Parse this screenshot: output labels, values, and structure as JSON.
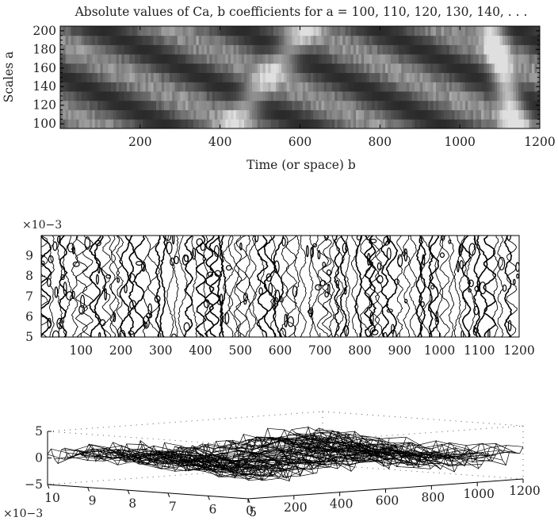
{
  "figure": {
    "panels": [
      {
        "id": "scalogram",
        "title": "Absolute values of Ca, b coefficients for a = 100, 110, 120, 130, 140, . . .",
        "xlabel": "Time (or space) b",
        "ylabel": "Scales a",
        "xticks": [
          "200",
          "400",
          "600",
          "800",
          "1000",
          "1200"
        ],
        "yticks": [
          "100",
          "120",
          "140",
          "160",
          "180",
          "200"
        ]
      },
      {
        "id": "contour",
        "multiplier": "×10−3",
        "xticks": [
          "100",
          "200",
          "300",
          "400",
          "500",
          "600",
          "700",
          "800",
          "900",
          "1000",
          "1100",
          "1200"
        ],
        "yticks": [
          "5",
          "6",
          "7",
          "8",
          "9"
        ]
      },
      {
        "id": "surface",
        "multiplier": "×10−3",
        "zticks": [
          "5",
          "0",
          "−5"
        ],
        "yticks": [
          "10",
          "9",
          "8",
          "7",
          "6",
          "5"
        ],
        "xticks": [
          "0",
          "200",
          "400",
          "600",
          "800",
          "1000",
          "1200"
        ]
      }
    ]
  },
  "chart_data": [
    {
      "type": "heatmap",
      "title": "Absolute values of Ca, b coefficients for a = 100, 110, 120, 130, 140, . . .",
      "xlabel": "Time (or space) b",
      "ylabel": "Scales a",
      "xlim": [
        0,
        1200
      ],
      "ylim": [
        95,
        205
      ],
      "scales": [
        100,
        110,
        120,
        130,
        140,
        150,
        160,
        170,
        180,
        190,
        200
      ],
      "colormap": "grayscale"
    },
    {
      "type": "contour",
      "xlim": [
        0,
        1200
      ],
      "ylim": [
        0.005,
        0.01
      ],
      "y_multiplier": "1e-3",
      "line_color": "#000000"
    },
    {
      "type": "surface",
      "x_range": [
        0,
        1200
      ],
      "y_range": [
        0.005,
        0.01
      ],
      "z_range": [
        -5,
        5
      ],
      "y_multiplier": "1e-3",
      "colormap": "black wireframe"
    }
  ]
}
